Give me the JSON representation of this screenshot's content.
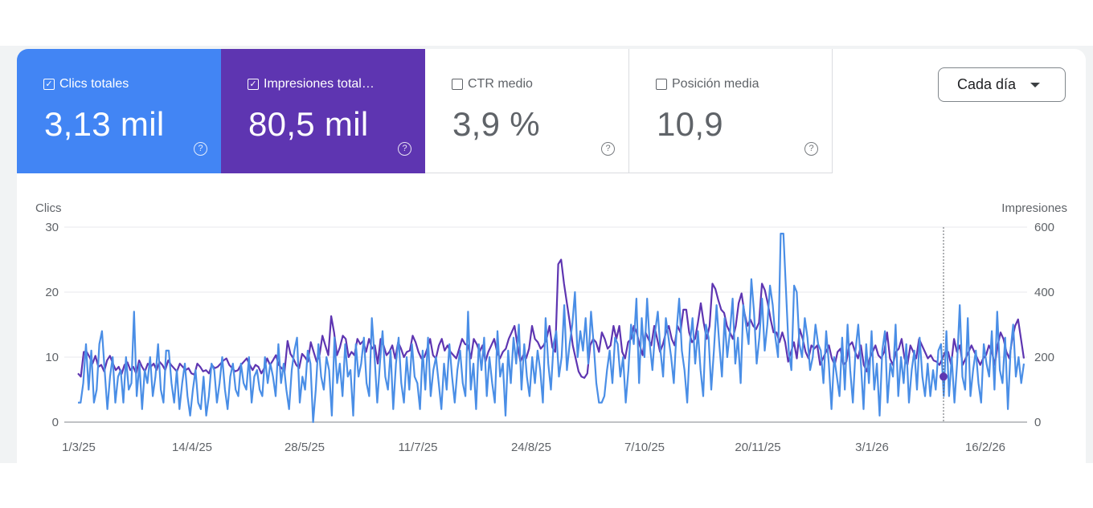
{
  "metrics": [
    {
      "label": "Clics totales",
      "value": "3,13 mil",
      "checked": true,
      "color": "#4285f4"
    },
    {
      "label": "Impresiones total…",
      "value": "80,5 mil",
      "checked": true,
      "color": "#5e35b1"
    },
    {
      "label": "CTR medio",
      "value": "3,9 %",
      "checked": false
    },
    {
      "label": "Posición media",
      "value": "10,9",
      "checked": false
    }
  ],
  "help_glyph": "?",
  "check_glyph": "✓",
  "granularity": {
    "label": "Cada día"
  },
  "chart_data": {
    "type": "line",
    "ylabel_left": "Clics",
    "ylabel_right": "Impresiones",
    "ylim_left": [
      0,
      30
    ],
    "ylim_right": [
      0,
      600
    ],
    "yticks_left": [
      "0",
      "10",
      "20",
      "30"
    ],
    "yticks_right": [
      "0",
      "200",
      "400",
      "600"
    ],
    "xticks": [
      "1/3/25",
      "14/4/25",
      "28/5/25",
      "11/7/25",
      "24/8/25",
      "7/10/25",
      "20/11/25",
      "3/1/26",
      "16/2/26"
    ],
    "grid": true,
    "colors": {
      "clicks": "#4a8ee6",
      "impressions": "#5e35b1"
    },
    "series": [
      {
        "name": "Clics totales",
        "axis": "left",
        "values": [
          3,
          3,
          6,
          12,
          5,
          11,
          3,
          5,
          12,
          14,
          8,
          2,
          7,
          10,
          3,
          7,
          8,
          3,
          10,
          5,
          6,
          17,
          4,
          9,
          2,
          8,
          6,
          10,
          4,
          7,
          12,
          5,
          3,
          11,
          11,
          6,
          3,
          8,
          2,
          6,
          9,
          4,
          1,
          5,
          8,
          3,
          2,
          7,
          1,
          4,
          9,
          8,
          3,
          6,
          10,
          5,
          2,
          7,
          9,
          5,
          4,
          9,
          6,
          5,
          10,
          3,
          7,
          8,
          5,
          4,
          10,
          6,
          9,
          7,
          4,
          12,
          6,
          9,
          5,
          2,
          8,
          11,
          13,
          3,
          7,
          5,
          11,
          9,
          0,
          5,
          12,
          7,
          5,
          10,
          8,
          1,
          13,
          6,
          9,
          4,
          12,
          7,
          8,
          1,
          12,
          7,
          9,
          13,
          6,
          4,
          16,
          10,
          3,
          9,
          14,
          7,
          5,
          11,
          2,
          9,
          13,
          6,
          3,
          10,
          5,
          12,
          7,
          6,
          2,
          11,
          5,
          13,
          4,
          8,
          10,
          6,
          2,
          9,
          5,
          12,
          7,
          3,
          8,
          11,
          6,
          4,
          17,
          5,
          9,
          2,
          12,
          8,
          13,
          4,
          10,
          6,
          3,
          14,
          7,
          9,
          1,
          11,
          6,
          13,
          9,
          15,
          5,
          12,
          7,
          4,
          10,
          6,
          11,
          8,
          3,
          16,
          9,
          5,
          12,
          14,
          7,
          10,
          18,
          8,
          12,
          15,
          20,
          10,
          14,
          11,
          16,
          9,
          17,
          12,
          6,
          3,
          3,
          4,
          8,
          11,
          6,
          13,
          12,
          7,
          10,
          3,
          8,
          15,
          12,
          19,
          6,
          16,
          10,
          19,
          12,
          8,
          14,
          17,
          11,
          7,
          16,
          13,
          10,
          6,
          14,
          19,
          11,
          8,
          3,
          12,
          16,
          9,
          14,
          8,
          4,
          15,
          13,
          5,
          11,
          18,
          12,
          7,
          16,
          10,
          14,
          19,
          9,
          13,
          6,
          18,
          15,
          12,
          22,
          17,
          9,
          13,
          19,
          11,
          15,
          21,
          18,
          13,
          10,
          29,
          29,
          20,
          11,
          8,
          21,
          20,
          12,
          10,
          16,
          13,
          8,
          10,
          15,
          12,
          11,
          6,
          14,
          9,
          2,
          10,
          7,
          4,
          13,
          5,
          15,
          8,
          3,
          11,
          15,
          9,
          2,
          12,
          6,
          14,
          5,
          9,
          1,
          11,
          14,
          3,
          9,
          7,
          15,
          4,
          10,
          6,
          12,
          3,
          8,
          11,
          5,
          13,
          7,
          4,
          9,
          4,
          8,
          5,
          11,
          12,
          4,
          14,
          4,
          10,
          3,
          9,
          18,
          7,
          5,
          16,
          4,
          8,
          11,
          6,
          3,
          12,
          9,
          7,
          14,
          5,
          17,
          8,
          6,
          13,
          2,
          11,
          15,
          7,
          10,
          6,
          9
        ]
      },
      {
        "name": "Impresiones totales",
        "axis": "right",
        "values": [
          150,
          140,
          216,
          216,
          200,
          180,
          204,
          170,
          176,
          156,
          190,
          204,
          180,
          160,
          170,
          148,
          176,
          184,
          160,
          170,
          150,
          190,
          170,
          156,
          180,
          170,
          180,
          160,
          186,
          176,
          160,
          190,
          176,
          166,
          156,
          180,
          170,
          160,
          166,
          150,
          146,
          180,
          170,
          156,
          160,
          150,
          176,
          166,
          170,
          180,
          190,
          196,
          176,
          166,
          156,
          160,
          176,
          186,
          196,
          176,
          160,
          176,
          170,
          150,
          166,
          196,
          176,
          190,
          206,
          176,
          166,
          156,
          250,
          210,
          196,
          176,
          166,
          210,
          200,
          186,
          246,
          216,
          186,
          206,
          266,
          236,
          206,
          326,
          276,
          206,
          230,
          266,
          256,
          200,
          216,
          206,
          256,
          240,
          250,
          216,
          256,
          226,
          236,
          180,
          256,
          236,
          206,
          216,
          236,
          196,
          246,
          226,
          200,
          216,
          220,
          266,
          246,
          216,
          196,
          200,
          226,
          256,
          206,
          196,
          236,
          256,
          220,
          236,
          216,
          206,
          196,
          226,
          256,
          240,
          236,
          196,
          256,
          240,
          216,
          236,
          186,
          216,
          236,
          256,
          216,
          196,
          216,
          226,
          256,
          276,
          296,
          236,
          186,
          206,
          196,
          226,
          296,
          256,
          246,
          226,
          236,
          256,
          296,
          230,
          216,
          486,
          500,
          426,
          366,
          306,
          236,
          196,
          156,
          140,
          136,
          150,
          236,
          256,
          246,
          216,
          276,
          256,
          226,
          236,
          296,
          256,
          296,
          216,
          196,
          246,
          256,
          296,
          276,
          236,
          206,
          276,
          256,
          236,
          296,
          256,
          216,
          240,
          276,
          296,
          256,
          236,
          296,
          276,
          346,
          346,
          276,
          246,
          256,
          306,
          366,
          306,
          256,
          296,
          426,
          410,
          376,
          346,
          336,
          296,
          276,
          256,
          296,
          366,
          396,
          336,
          296,
          316,
          296,
          286,
          306,
          426,
          406,
          366,
          316,
          276,
          276,
          246,
          276,
          246,
          186,
          216,
          246,
          196,
          286,
          256,
          216,
          196,
          236,
          226,
          236,
          176,
          196,
          216,
          236,
          196,
          176,
          216,
          226,
          176,
          186,
          236,
          246,
          216,
          196,
          236,
          176,
          156,
          196,
          216,
          236,
          206,
          196,
          216,
          276,
          196,
          176,
          216,
          226,
          256,
          196,
          176,
          236,
          216,
          196,
          256,
          236,
          216,
          196,
          206,
          190,
          186,
          176,
          196,
          216,
          216,
          176,
          256,
          216,
          236,
          176,
          196,
          216,
          236,
          216,
          196,
          176,
          196,
          206,
          236,
          216,
          176,
          236,
          276,
          256,
          216,
          196,
          256,
          296,
          316,
          256,
          196
        ]
      }
    ],
    "marker_point": {
      "x": "2/2/26",
      "series": "Impresiones totales",
      "value": 140
    }
  }
}
